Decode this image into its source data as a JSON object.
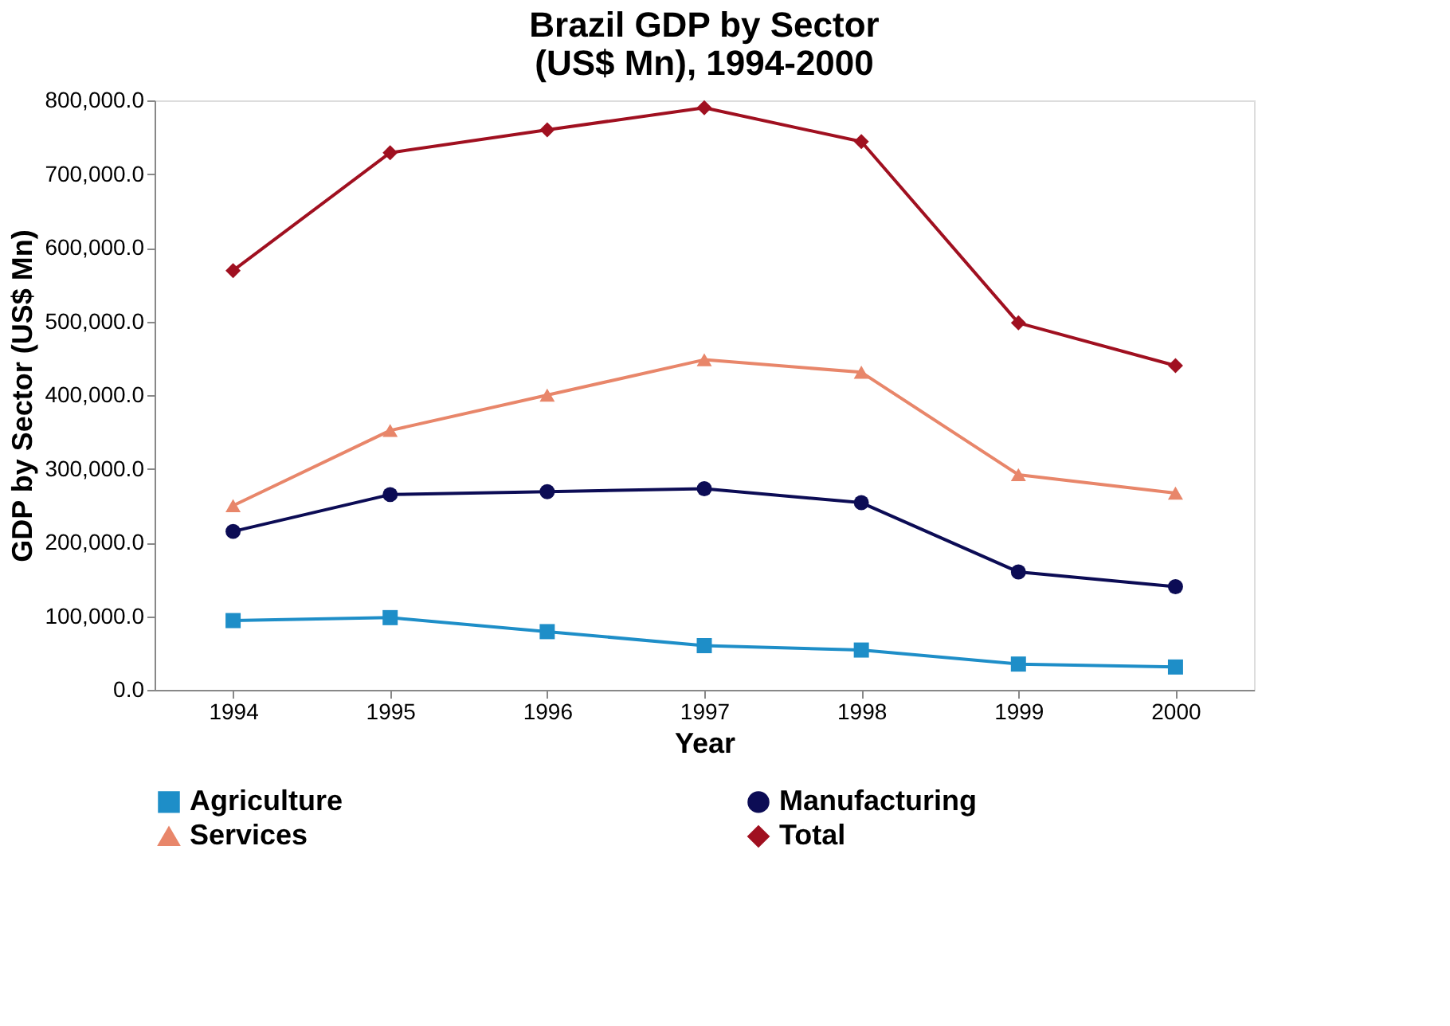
{
  "chart_data": {
    "type": "line",
    "title": [
      "Brazil GDP by Sector",
      "(US$ Mn), 1994-2000"
    ],
    "xlabel": "Year",
    "ylabel": "GDP by Sector (US$ Mn)",
    "categories": [
      "1994",
      "1995",
      "1996",
      "1997",
      "1998",
      "1999",
      "2000"
    ],
    "series": [
      {
        "name": "Agriculture",
        "color": "#1e8ec8",
        "marker": "square",
        "values": [
          94000,
          98000,
          79000,
          60000,
          54000,
          35000,
          31000
        ]
      },
      {
        "name": "Manufacturing",
        "color": "#0c0c55",
        "marker": "circle",
        "values": [
          215000,
          265000,
          269000,
          273000,
          254000,
          160000,
          140000
        ]
      },
      {
        "name": "Services",
        "color": "#e8866a",
        "marker": "triangle",
        "values": [
          250000,
          352000,
          400000,
          448000,
          431000,
          292000,
          267000
        ]
      },
      {
        "name": "Total",
        "color": "#a01020",
        "marker": "diamond",
        "values": [
          569000,
          729000,
          760000,
          790000,
          744000,
          498000,
          440000
        ]
      }
    ],
    "ylim": [
      0,
      800000
    ],
    "yticks": [
      {
        "value": 0,
        "label": "0.0"
      },
      {
        "value": 100000,
        "label": "100,000.0"
      },
      {
        "value": 200000,
        "label": "200,000.0"
      },
      {
        "value": 300000,
        "label": "300,000.0"
      },
      {
        "value": 400000,
        "label": "400,000.0"
      },
      {
        "value": 500000,
        "label": "500,000.0"
      },
      {
        "value": 600000,
        "label": "600,000.0"
      },
      {
        "value": 700000,
        "label": "700,000.0"
      },
      {
        "value": 800000,
        "label": "800,000.0"
      }
    ],
    "grid": false,
    "legend": "bottom",
    "line_style": "solid"
  }
}
